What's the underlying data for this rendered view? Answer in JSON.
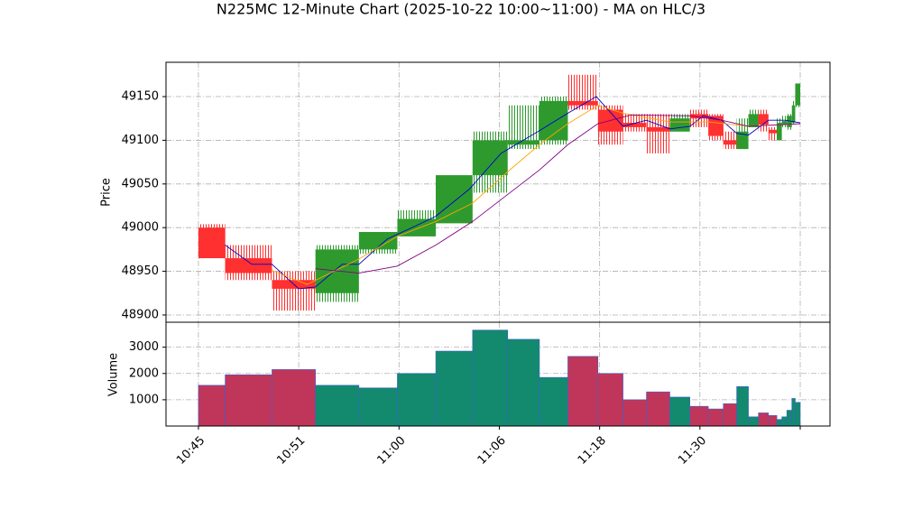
{
  "chart_data": {
    "type": "candlestick",
    "title": "N225MC 12-Minute Chart (2025-10-22 10:00~11:00) - MA on HLC/3",
    "ylabel": "Price",
    "volume_ylabel": "Volume",
    "x_start": [
      0,
      16,
      44,
      70,
      96,
      119,
      142,
      164,
      185,
      204,
      221,
      239,
      254,
      268,
      282,
      294,
      305,
      314,
      322,
      329,
      335,
      341,
      346,
      349,
      352,
      355,
      357
    ],
    "x_end": [
      16,
      44,
      70,
      96,
      119,
      142,
      164,
      185,
      204,
      221,
      239,
      254,
      268,
      282,
      294,
      305,
      314,
      322,
      329,
      335,
      341,
      346,
      349,
      352,
      355,
      357,
      360
    ],
    "open": [
      49000,
      48965,
      48940,
      48925,
      48975,
      48990,
      49005,
      49060,
      49095,
      49100,
      49145,
      49135,
      49120,
      49115,
      49110,
      49130,
      49128,
      49100,
      49090,
      49115,
      49130,
      49112,
      49100,
      49118,
      49115,
      49120,
      49140
    ],
    "high": [
      49004,
      48980,
      48950,
      48980,
      48995,
      49020,
      49060,
      49110,
      49140,
      49150,
      49175,
      49140,
      49130,
      49130,
      49130,
      49135,
      49130,
      49110,
      49125,
      49135,
      49135,
      49115,
      49125,
      49128,
      49130,
      49145,
      49165
    ],
    "low": [
      48965,
      48940,
      48905,
      48915,
      48970,
      48990,
      49005,
      49040,
      49090,
      49095,
      49135,
      49095,
      49110,
      49085,
      49110,
      49115,
      49100,
      49090,
      49090,
      49115,
      49110,
      49100,
      49100,
      49115,
      49112,
      49118,
      49138
    ],
    "close": [
      48965,
      48948,
      48930,
      48975,
      48995,
      49010,
      49060,
      49100,
      49100,
      49145,
      49140,
      49110,
      49115,
      49110,
      49125,
      49125,
      49105,
      49095,
      49110,
      49130,
      49118,
      49108,
      49120,
      49122,
      49128,
      49140,
      49165
    ],
    "volume": [
      1550,
      1950,
      2150,
      1550,
      1450,
      2000,
      2850,
      3650,
      3300,
      1850,
      2650,
      2000,
      1000,
      1300,
      1100,
      750,
      650,
      850,
      1500,
      350,
      500,
      400,
      250,
      350,
      600,
      1050,
      900
    ],
    "up_color": "#2e9a2e",
    "down_color": "#ff3030",
    "volume_up_color": "#138a6e",
    "volume_down_color": "#c0365a",
    "volume_edge_color": "#3a5fcd",
    "ma": [
      {
        "color": "#0000cc",
        "x": [
          16,
          32,
          44,
          60,
          70,
          86,
          96,
          113,
          130,
          142,
          162,
          181,
          204,
          221,
          238,
          254,
          268,
          282,
          294,
          302,
          313,
          322,
          329,
          341,
          351,
          360
        ],
        "values": [
          48980,
          48958,
          48958,
          48930,
          48932,
          48958,
          48958,
          48987,
          49002,
          49013,
          49044,
          49085,
          49111,
          49131,
          49150,
          49116,
          49123,
          49113,
          49116,
          49128,
          49123,
          49108,
          49106,
          49123,
          49123,
          49120
        ]
      },
      {
        "color": "#ffa500",
        "x": [
          44,
          65,
          96,
          119,
          142,
          164,
          185,
          204,
          221,
          239,
          254,
          282,
          305,
          329,
          360
        ],
        "values": [
          48951,
          48935,
          48964,
          48990,
          49007,
          49028,
          49064,
          49095,
          49119,
          49140,
          49131,
          49121,
          49121,
          49116,
          49119
        ]
      },
      {
        "color": "#800080",
        "x": [
          70,
          96,
          119,
          142,
          164,
          185,
          204,
          221,
          239,
          259,
          294,
          313,
          329,
          360
        ],
        "values": [
          48953,
          48948,
          48956,
          48980,
          49007,
          49038,
          49066,
          49095,
          49119,
          49129,
          49128,
          49123,
          49116,
          49119
        ]
      }
    ],
    "xlim": [
      -19.4,
      377.8
    ],
    "xticks": [
      {
        "value": 0,
        "label": "10:45"
      },
      {
        "value": 60,
        "label": "10:51"
      },
      {
        "value": 120,
        "label": "11:00"
      },
      {
        "value": 180,
        "label": "11:06"
      },
      {
        "value": 240,
        "label": "11:18"
      },
      {
        "value": 300,
        "label": "11:30"
      },
      {
        "value": 360,
        "label": ""
      }
    ],
    "ylim": [
      48891.7,
      49189.3
    ],
    "yticks": [
      48900,
      48950,
      49000,
      49050,
      49100,
      49150
    ],
    "volume_ylim": [
      0,
      3950
    ],
    "volume_yticks": [
      1000,
      2000,
      3000
    ],
    "grid": true
  }
}
